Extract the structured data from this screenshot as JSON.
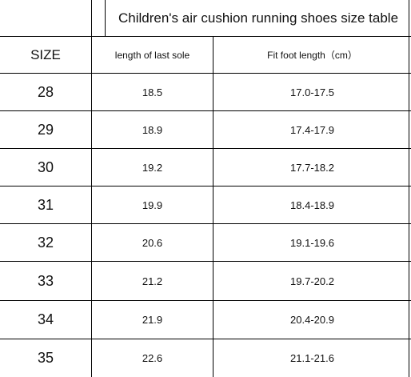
{
  "table": {
    "title": "Children's air cushion running shoes size table",
    "headers": {
      "size": "SIZE",
      "last_length": "length of last sole",
      "foot_length": "Fit foot length（cm）"
    },
    "rows": [
      {
        "size": "28",
        "last_length": "18.5",
        "foot_length": "17.0-17.5"
      },
      {
        "size": "29",
        "last_length": "18.9",
        "foot_length": "17.4-17.9"
      },
      {
        "size": "30",
        "last_length": "19.2",
        "foot_length": "17.7-18.2"
      },
      {
        "size": "31",
        "last_length": "19.9",
        "foot_length": "18.4-18.9"
      },
      {
        "size": "32",
        "last_length": "20.6",
        "foot_length": "19.1-19.6"
      },
      {
        "size": "33",
        "last_length": "21.2",
        "foot_length": "19.7-20.2"
      },
      {
        "size": "34",
        "last_length": "21.9",
        "foot_length": "20.4-20.9"
      },
      {
        "size": "35",
        "last_length": "22.6",
        "foot_length": "21.1-21.6"
      }
    ]
  }
}
